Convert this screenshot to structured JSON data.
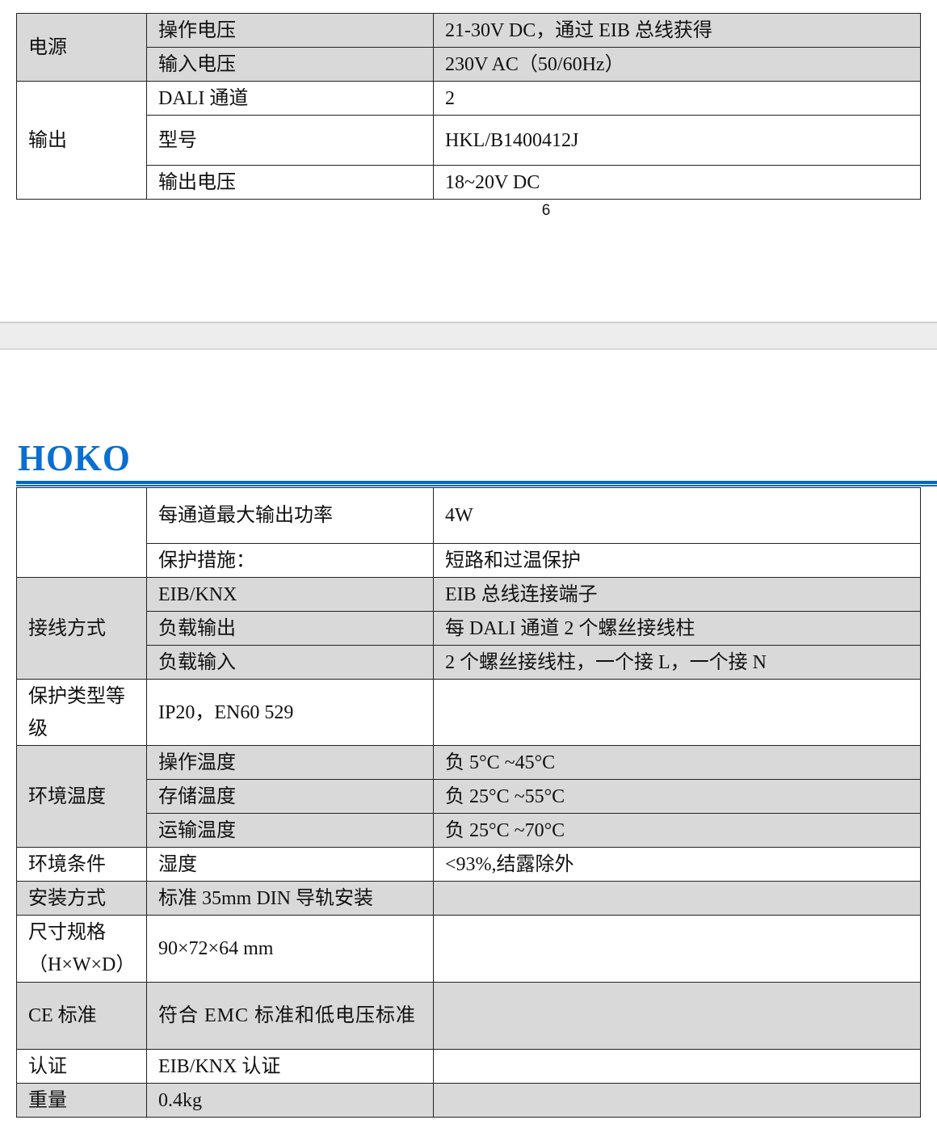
{
  "page1": {
    "rows": [
      {
        "group": "电源",
        "name": "操作电压",
        "value": "21-30V DC，通过 EIB  总线获得"
      },
      {
        "name": "输入电压",
        "value": "230V AC（50/60Hz）"
      },
      {
        "group": "输出",
        "name": "DALI 通道",
        "value": "2"
      },
      {
        "name": "型号",
        "value": "HKL/B1400412J"
      },
      {
        "name": "输出电压",
        "value": "18~20V DC"
      }
    ],
    "page_number": "6"
  },
  "page2": {
    "logo": "HOKO",
    "rows": [
      {
        "group": "",
        "name": "每通道最大输出功率",
        "value": "4W"
      },
      {
        "name": "保护措施：",
        "value": "短路和过温保护"
      },
      {
        "group": "接线方式",
        "name": "EIB/KNX",
        "value": "EIB 总线连接端子"
      },
      {
        "name": "负载输出",
        "value": "每 DALI 通道 2  个螺丝接线柱"
      },
      {
        "name": "负载输入",
        "value": "2  个螺丝接线柱，一个接 L，一个接 N"
      },
      {
        "group": "保护类型等级",
        "name": "IP20，EN60 529",
        "value": ""
      },
      {
        "group": "环境温度",
        "name": "操作温度",
        "value": "负 5°C ~45°C"
      },
      {
        "name": "存储温度",
        "value": "负 25°C ~55°C"
      },
      {
        "name": "运输温度",
        "value": "负 25°C ~70°C"
      },
      {
        "group": "环境条件",
        "name": "湿度",
        "value": "<93%,结露除外"
      },
      {
        "group": "安装方式",
        "name": "标准 35mm DIN  导轨安装",
        "value": ""
      },
      {
        "group": "尺寸规格（H×W×D）",
        "group_line1": "尺寸规格",
        "group_line2": "（H×W×D）",
        "name": "90×72×64 mm",
        "value": ""
      },
      {
        "group": "CE 标准",
        "name": "符合 EMC  标准和低电压标准",
        "value": ""
      },
      {
        "group": "认证",
        "name": "EIB/KNX  认证",
        "value": ""
      },
      {
        "group": "重量",
        "name": "0.4kg",
        "value": ""
      }
    ]
  },
  "colors": {
    "row_shade": "#d9d9d9",
    "brand_blue": "#0066cc",
    "page_gap": "#ededed"
  }
}
